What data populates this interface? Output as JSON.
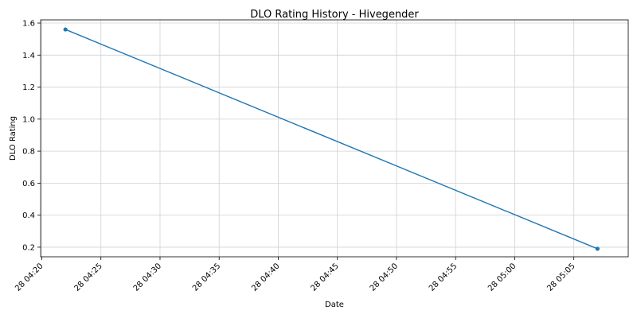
{
  "chart_data": {
    "type": "line",
    "title": "DLO Rating History - Hivegender",
    "xlabel": "Date",
    "ylabel": "DLO Rating",
    "x_ticks": [
      "28 04:20",
      "28 04:25",
      "28 04:30",
      "28 04:35",
      "28 04:40",
      "28 04:45",
      "28 04:50",
      "28 04:55",
      "28 05:00",
      "28 05:05"
    ],
    "y_ticks": [
      "0.2",
      "0.4",
      "0.6",
      "0.8",
      "1.0",
      "1.2",
      "1.4",
      "1.6"
    ],
    "ylim": [
      0.14,
      1.62
    ],
    "xlim": [
      "28 04:19.9",
      "28 05:09.6"
    ],
    "grid": true,
    "series": [
      {
        "color": "#1f77b4",
        "points": [
          {
            "x": "28 04:22",
            "y": 1.56
          },
          {
            "x": "28 05:07",
            "y": 0.19
          }
        ]
      }
    ]
  }
}
